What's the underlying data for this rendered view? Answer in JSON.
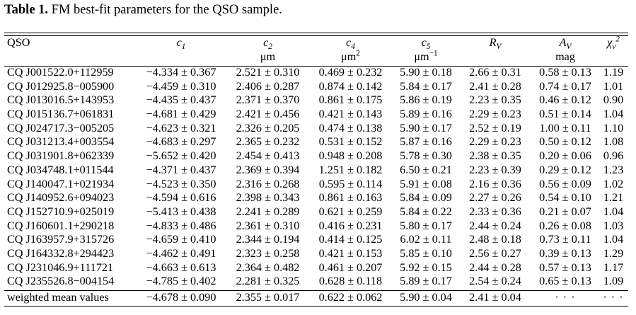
{
  "caption": {
    "lead": "Table 1.",
    "text": " FM best-fit parameters for the QSO sample."
  },
  "header": {
    "qso": "QSO",
    "c1": {
      "sym": "c",
      "sub": "1",
      "unit": ""
    },
    "c2": {
      "sym": "c",
      "sub": "2",
      "unit": "μm"
    },
    "c4": {
      "sym": "c",
      "sub": "4",
      "unit_base": "μm",
      "unit_sup": "2"
    },
    "c5": {
      "sym": "c",
      "sub": "5",
      "unit_base": "μm",
      "unit_sup": "−1"
    },
    "rv": {
      "sym": "R",
      "sub": "V",
      "unit": ""
    },
    "av": {
      "sym": "A",
      "sub": "V",
      "unit": "mag"
    },
    "chi": {
      "sym": "χ",
      "sub": "ν",
      "sup": "2",
      "unit": ""
    }
  },
  "rows": [
    {
      "qso": "CQ J001522.0+112959",
      "c1": "−4.334 ± 0.367",
      "c2": "2.521 ± 0.310",
      "c4": "0.469 ± 0.232",
      "c5": "5.90 ± 0.18",
      "rv": "2.66 ± 0.31",
      "av": "0.58 ± 0.13",
      "chi": "1.19"
    },
    {
      "qso": "CQ J012925.8−005900",
      "c1": "−4.459 ± 0.310",
      "c2": "2.406 ± 0.287",
      "c4": "0.874 ± 0.142",
      "c5": "5.84 ± 0.17",
      "rv": "2.41 ± 0.28",
      "av": "0.74 ± 0.17",
      "chi": "1.01"
    },
    {
      "qso": "CQ J013016.5+143953",
      "c1": "−4.435 ± 0.437",
      "c2": "2.371 ± 0.370",
      "c4": "0.861 ± 0.175",
      "c5": "5.86 ± 0.19",
      "rv": "2.23 ± 0.35",
      "av": "0.46 ± 0.12",
      "chi": "0.90"
    },
    {
      "qso": "CQ J015136.7+061831",
      "c1": "−4.681 ± 0.429",
      "c2": "2.421 ± 0.456",
      "c4": "0.421 ± 0.143",
      "c5": "5.89 ± 0.16",
      "rv": "2.29 ± 0.23",
      "av": "0.51 ± 0.14",
      "chi": "1.04"
    },
    {
      "qso": "CQ J024717.3−005205",
      "c1": "−4.623 ± 0.321",
      "c2": "2.326 ± 0.205",
      "c4": "0.474 ± 0.138",
      "c5": "5.90 ± 0.17",
      "rv": "2.52 ± 0.19",
      "av": "1.00 ± 0.11",
      "chi": "1.10"
    },
    {
      "qso": "CQ J031213.4+003554",
      "c1": "−4.683 ± 0.297",
      "c2": "2.365 ± 0.232",
      "c4": "0.531 ± 0.152",
      "c5": "5.87 ± 0.16",
      "rv": "2.29 ± 0.23",
      "av": "0.50 ± 0.12",
      "chi": "1.08"
    },
    {
      "qso": "CQ J031901.8+062339",
      "c1": "−5.652 ± 0.420",
      "c2": "2.454 ± 0.413",
      "c4": "0.948 ± 0.208",
      "c5": "5.78 ± 0.30",
      "rv": "2.38 ± 0.35",
      "av": "0.20 ± 0.06",
      "chi": "0.96"
    },
    {
      "qso": "CQ J034748.1+011544",
      "c1": "−4.371 ± 0.437",
      "c2": "2.369 ± 0.394",
      "c4": "1.251 ± 0.182",
      "c5": "6.50 ± 0.21",
      "rv": "2.23 ± 0.39",
      "av": "0.29 ± 0.12",
      "chi": "1.23"
    },
    {
      "qso": "CQ J140047.1+021934",
      "c1": "−4.523 ± 0.350",
      "c2": "2.316 ± 0.268",
      "c4": "0.595 ± 0.114",
      "c5": "5.91 ± 0.08",
      "rv": "2.16 ± 0.36",
      "av": "0.56 ± 0.09",
      "chi": "1.02"
    },
    {
      "qso": "CQ J140952.6+094023",
      "c1": "−4.594 ± 0.616",
      "c2": "2.398 ± 0.343",
      "c4": "0.861 ± 0.163",
      "c5": "5.84 ± 0.09",
      "rv": "2.27 ± 0.26",
      "av": "0.54 ± 0.10",
      "chi": "1.21"
    },
    {
      "qso": "CQ J152710.9+025019",
      "c1": "−5.413 ± 0.438",
      "c2": "2.241 ± 0.289",
      "c4": "0.621 ± 0.259",
      "c5": "5.84 ± 0.22",
      "rv": "2.33 ± 0.36",
      "av": "0.21 ± 0.07",
      "chi": "1.04"
    },
    {
      "qso": "CQ J160601.1+290218",
      "c1": "−4.833 ± 0.486",
      "c2": "2.361 ± 0.310",
      "c4": "0.416 ± 0.231",
      "c5": "5.80 ± 0.17",
      "rv": "2.44 ± 0.24",
      "av": "0.26 ± 0.08",
      "chi": "1.03"
    },
    {
      "qso": "CQ J163957.9+315726",
      "c1": "−4.659 ± 0.410",
      "c2": "2.344 ± 0.194",
      "c4": "0.414 ± 0.125",
      "c5": "6.02 ± 0.11",
      "rv": "2.48 ± 0.18",
      "av": "0.73 ± 0.11",
      "chi": "1.04"
    },
    {
      "qso": "CQ J164332.8+294423",
      "c1": "−4.462 ± 0.491",
      "c2": "2.323 ± 0.258",
      "c4": "0.421 ± 0.153",
      "c5": "5.85 ± 0.10",
      "rv": "2.56 ± 0.27",
      "av": "0.39 ± 0.13",
      "chi": "1.29"
    },
    {
      "qso": "CQ J231046.9+111721",
      "c1": "−4.663 ± 0.613",
      "c2": "2.364 ± 0.482",
      "c4": "0.461 ± 0.207",
      "c5": "5.92 ± 0.15",
      "rv": "2.44 ± 0.28",
      "av": "0.57 ± 0.13",
      "chi": "1.17"
    },
    {
      "qso": "CQ J235526.8−004154",
      "c1": "−4.785 ± 0.402",
      "c2": "2.281 ± 0.325",
      "c4": "0.628 ± 0.118",
      "c5": "5.89 ± 0.17",
      "rv": "2.54 ± 0.24",
      "av": "0.65 ± 0.13",
      "chi": "1.09"
    }
  ],
  "mean_row": {
    "qso": "weighted mean values",
    "c1": "−4.678 ± 0.090",
    "c2": "2.355 ± 0.017",
    "c4": "0.622 ± 0.062",
    "c5": "5.90 ± 0.04",
    "rv": "2.41 ± 0.04",
    "av": "· · ·",
    "chi": "· · ·"
  }
}
